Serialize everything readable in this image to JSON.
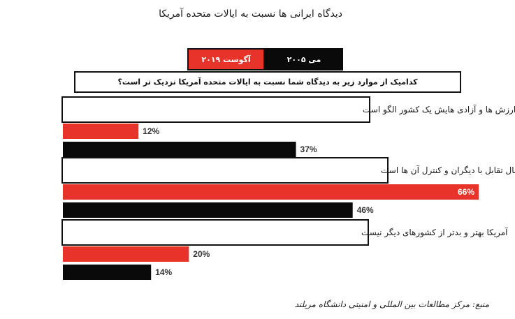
{
  "title": "دیدگاه ایرانی ها نسبت به ایالات متحده آمریکا",
  "source": "منبع: مرکز مطالعات بین المللی و امنیتی دانشگاه مریلند",
  "colors": {
    "august_2019": "#e8332a",
    "may_2005": "#0a0a0a"
  },
  "chart_data": {
    "type": "bar",
    "orientation": "horizontal",
    "title": "دیدگاه ایرانی ها نسبت به ایالات متحده آمریکا",
    "question": "کدامیک از موارد زیر به دیدگاه شما نسبت به ایالات متحده آمریکا نزدیک تر است؟",
    "categories": [
      "آمریکا بواسطه ارزش ها و آزادی هایش یک کشور الگو است",
      "آمریکا کشوری خطرناک است که به دنبال تقابل با دیگران و کنترل آن ها است",
      "آمریکا بهتر و بدتر از کشورهای دیگر نیست"
    ],
    "series": [
      {
        "name": "آگوست ۲۰۱۹",
        "color": "#e8332a",
        "values": [
          12,
          66,
          20
        ],
        "labels": [
          "12%",
          "66%",
          "20%"
        ]
      },
      {
        "name": "می ۲۰۰۵",
        "color": "#0a0a0a",
        "values": [
          37,
          46,
          14
        ],
        "labels": [
          "37%",
          "46%",
          "14%"
        ]
      }
    ],
    "unit": "%",
    "xlim": [
      0,
      66
    ],
    "legend_position": "top",
    "grid": false
  }
}
